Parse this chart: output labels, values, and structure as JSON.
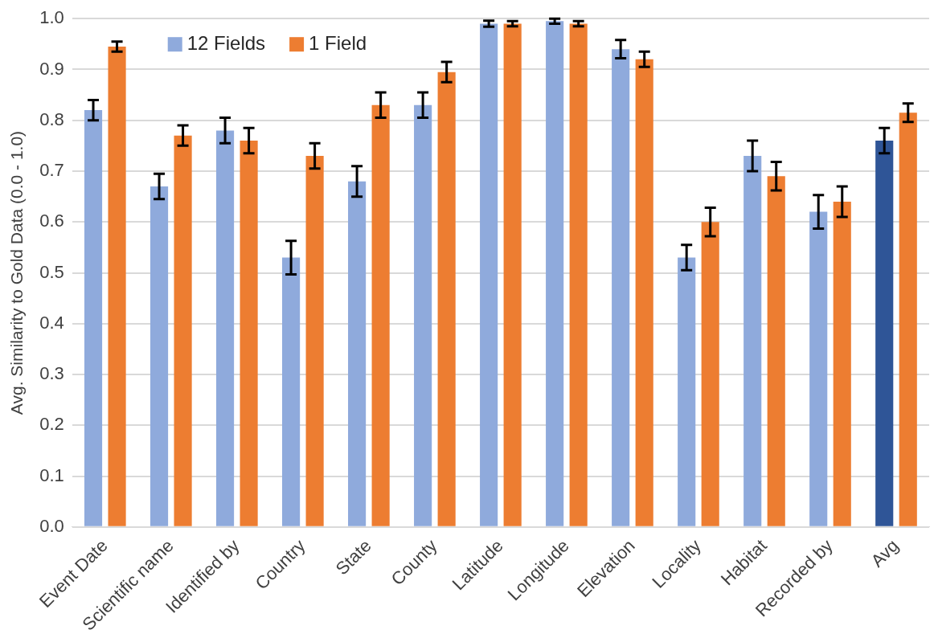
{
  "chart_data": {
    "type": "bar",
    "ylabel": "Avg. Similarity to Gold Data (0.0 - 1.0)",
    "categories": [
      "Event Date",
      "Scientific name",
      "Identified by",
      "Country",
      "State",
      "County",
      "Latitude",
      "Longitude",
      "Elevation",
      "Locality",
      "Habitat",
      "Recorded by",
      "Avg"
    ],
    "series": [
      {
        "name": "12 Fields",
        "color": "#8faadc",
        "colors": [
          "#8faadc",
          "#8faadc",
          "#8faadc",
          "#8faadc",
          "#8faadc",
          "#8faadc",
          "#8faadc",
          "#8faadc",
          "#8faadc",
          "#8faadc",
          "#8faadc",
          "#8faadc",
          "#2f5597"
        ],
        "values": [
          0.82,
          0.67,
          0.78,
          0.53,
          0.68,
          0.83,
          0.99,
          0.995,
          0.94,
          0.53,
          0.73,
          0.62,
          0.76
        ],
        "errors": [
          0.02,
          0.025,
          0.025,
          0.033,
          0.03,
          0.025,
          0.006,
          0.005,
          0.018,
          0.025,
          0.03,
          0.033,
          0.025
        ]
      },
      {
        "name": "1 Field",
        "color": "#ed7d31",
        "values": [
          0.945,
          0.77,
          0.76,
          0.73,
          0.83,
          0.895,
          0.99,
          0.99,
          0.92,
          0.6,
          0.69,
          0.64,
          0.815
        ],
        "errors": [
          0.01,
          0.02,
          0.025,
          0.025,
          0.025,
          0.02,
          0.005,
          0.005,
          0.015,
          0.028,
          0.028,
          0.03,
          0.018
        ]
      }
    ],
    "ylim": [
      0,
      1
    ],
    "yticks": [
      {
        "value": 0,
        "label": "0.0"
      },
      {
        "value": 0.1,
        "label": "0.1"
      },
      {
        "value": 0.2,
        "label": "0.2"
      },
      {
        "value": 0.3,
        "label": "0.3"
      },
      {
        "value": 0.4,
        "label": "0.4"
      },
      {
        "value": 0.5,
        "label": "0.5"
      },
      {
        "value": 0.6,
        "label": "0.6"
      },
      {
        "value": 0.7,
        "label": "0.7"
      },
      {
        "value": 0.8,
        "label": "0.8"
      },
      {
        "value": 0.9,
        "label": "0.9"
      },
      {
        "value": 1,
        "label": "1.0"
      }
    ],
    "grid": "y",
    "legend": "top"
  }
}
